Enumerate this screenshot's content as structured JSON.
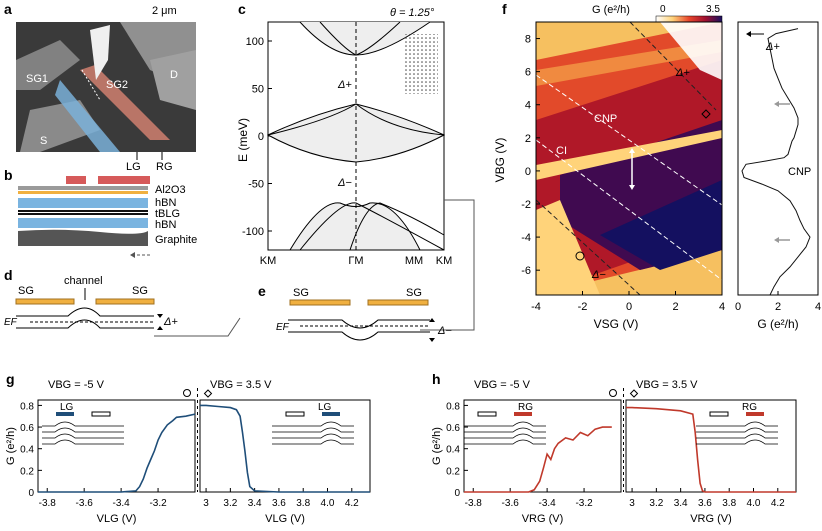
{
  "panels": {
    "a": {
      "label": "a",
      "scalebar": "2 μm",
      "region_labels": [
        "SG1",
        "SG2",
        "D",
        "S"
      ],
      "gate_labels": [
        "LG",
        "RG"
      ]
    },
    "b": {
      "label": "b",
      "layers": [
        "Al2O3",
        "hBN",
        "tBLG",
        "hBN",
        "Graphite"
      ]
    },
    "c": {
      "label": "c",
      "theta": "θ = 1.25°",
      "ylabel": "E (meV)",
      "yticks": [
        "100",
        "50",
        "0",
        "-50",
        "-100"
      ],
      "xticks": [
        "KM",
        "ΓM",
        "MM",
        "KM"
      ],
      "gap_plus": "Δ+",
      "gap_minus": "Δ−"
    },
    "d": {
      "label": "d",
      "sg_left": "SG",
      "sg_right": "SG",
      "channel": "channel",
      "ef": "EF",
      "gap": "Δ+"
    },
    "e": {
      "label": "e",
      "sg_left": "SG",
      "sg_right": "SG",
      "ef": "EF",
      "gap": "Δ−"
    },
    "f": {
      "label": "f",
      "colorbar_label": "G (e²/h)",
      "colorbar_min": "0",
      "colorbar_max": "3.5",
      "ylabel": "VBG (V)",
      "xlabel": "VSG (V)",
      "xticks": [
        "-4",
        "-2",
        "0",
        "2",
        "4"
      ],
      "yticks": [
        "8",
        "6",
        "4",
        "2",
        "0",
        "-2",
        "-4",
        "-6"
      ],
      "annotations": [
        "Δ+",
        "CNP",
        "CI",
        "Δ−"
      ],
      "side_xlabel": "G (e²/h)",
      "side_xticks": [
        "0",
        "2",
        "4"
      ],
      "side_annotations": [
        "Δ+",
        "CNP"
      ]
    },
    "g": {
      "label": "g",
      "ylabel": "G (e²/h)",
      "yticks": [
        "0.8",
        "0.6",
        "0.4",
        "0.2",
        "0"
      ],
      "left_title": "VBG = -5 V",
      "right_title": "VBG = 3.5 V",
      "xticks_left": [
        "-3.8",
        "-3.6",
        "-3.4",
        "-3.2"
      ],
      "xticks_right": [
        "3",
        "3.2",
        "3.4",
        "3.6",
        "3.8",
        "4.0",
        "4.2"
      ],
      "xlabel": "VLG (V)",
      "gate": "LG",
      "color": "#1f4e79"
    },
    "h": {
      "label": "h",
      "ylabel": "G (e²/h)",
      "yticks": [
        "0.8",
        "0.6",
        "0.4",
        "0.2",
        "0"
      ],
      "left_title": "VBG = -5 V",
      "right_title": "VBG = 3.5 V",
      "xticks_left": [
        "-3.8",
        "-3.6",
        "-3.4",
        "-3.2"
      ],
      "xticks_right": [
        "3",
        "3.2",
        "3.4",
        "3.6",
        "3.8",
        "4.0",
        "4.2"
      ],
      "xlabel": "VRG (V)",
      "gate": "RG",
      "color": "#c0392b"
    }
  },
  "chart_data": [
    {
      "type": "line",
      "panel": "c",
      "title": "θ = 1.25°",
      "xlabel": "",
      "ylabel": "E (meV)",
      "ylim": [
        -120,
        120
      ],
      "x_ticks": [
        "KM",
        "ΓM",
        "MM",
        "KM"
      ]
    },
    {
      "type": "heatmap",
      "panel": "f",
      "xlabel": "VSG (V)",
      "ylabel": "VBG (V)",
      "xlim": [
        -4,
        4
      ],
      "ylim": [
        -7.5,
        9
      ],
      "zlim": [
        0,
        3.5
      ]
    },
    {
      "type": "line",
      "panel": "f-side",
      "xlabel": "G (e²/h)",
      "xlim": [
        0,
        4
      ],
      "ylim": [
        -7.5,
        9
      ],
      "series": [
        {
          "x": [
            3.0,
            1.9,
            1.5,
            1.6,
            1.7,
            1.8,
            2.0,
            2.2,
            2.5,
            2.8,
            3.0,
            3.0,
            2.9,
            2.8,
            2.7,
            2.6,
            2.5,
            2.3,
            1.4,
            0.4,
            0.2,
            0.3,
            1.2,
            2.0,
            2.6,
            2.9,
            3.1,
            3.3,
            3.6,
            3.4,
            3.0,
            2.6,
            2.1,
            1.8,
            1.6
          ],
          "y": [
            8.6,
            8.3,
            8.0,
            7.4,
            6.8,
            6.2,
            5.6,
            5.0,
            4.4,
            3.8,
            3.2,
            2.8,
            2.4,
            2.0,
            1.8,
            1.4,
            1.0,
            0.8,
            0.6,
            0.4,
            0.0,
            -0.4,
            -0.8,
            -1.2,
            -1.8,
            -2.4,
            -3.0,
            -3.5,
            -4.0,
            -4.6,
            -5.2,
            -5.8,
            -6.4,
            -7.0,
            -7.5
          ]
        }
      ]
    },
    {
      "type": "line",
      "panel": "g",
      "ylabel": "G (e²/h)",
      "ylim": [
        0,
        0.85
      ],
      "series": [
        {
          "x": [
            -3.85,
            -3.6,
            -3.4,
            -3.32,
            -3.3,
            -3.28,
            -3.26,
            -3.24,
            -3.22,
            -3.2,
            -3.18,
            -3.15,
            -3.12,
            -3.1,
            -3.05,
            -3.0
          ],
          "y": [
            0.0,
            0.0,
            0.0,
            0.01,
            0.05,
            0.12,
            0.22,
            0.3,
            0.38,
            0.48,
            0.55,
            0.62,
            0.66,
            0.69,
            0.7,
            0.72
          ]
        },
        {
          "x": [
            2.95,
            3.0,
            3.1,
            3.2,
            3.25,
            3.28,
            3.3,
            3.32,
            3.34,
            3.36,
            3.4,
            3.6,
            3.8,
            4.0,
            4.2,
            4.35
          ],
          "y": [
            0.8,
            0.8,
            0.79,
            0.78,
            0.76,
            0.7,
            0.55,
            0.38,
            0.18,
            0.05,
            0.01,
            0.0,
            0.0,
            0.0,
            0.0,
            0.0
          ]
        }
      ]
    },
    {
      "type": "line",
      "panel": "h",
      "ylabel": "G (e²/h)",
      "ylim": [
        0,
        0.85
      ],
      "series": [
        {
          "x": [
            -3.85,
            -3.6,
            -3.5,
            -3.47,
            -3.44,
            -3.42,
            -3.4,
            -3.38,
            -3.36,
            -3.34,
            -3.3,
            -3.26,
            -3.22,
            -3.18,
            -3.14,
            -3.1,
            -3.05
          ],
          "y": [
            0.0,
            0.0,
            0.0,
            0.02,
            0.1,
            0.22,
            0.35,
            0.3,
            0.4,
            0.45,
            0.5,
            0.48,
            0.55,
            0.52,
            0.58,
            0.6,
            0.6
          ]
        },
        {
          "x": [
            2.95,
            3.0,
            3.2,
            3.4,
            3.5,
            3.52,
            3.54,
            3.56,
            3.58,
            3.6,
            3.8,
            4.0,
            4.2,
            4.35
          ],
          "y": [
            0.78,
            0.78,
            0.77,
            0.75,
            0.72,
            0.55,
            0.3,
            0.08,
            0.01,
            0.0,
            0.0,
            0.0,
            0.0,
            0.0
          ]
        }
      ]
    }
  ]
}
